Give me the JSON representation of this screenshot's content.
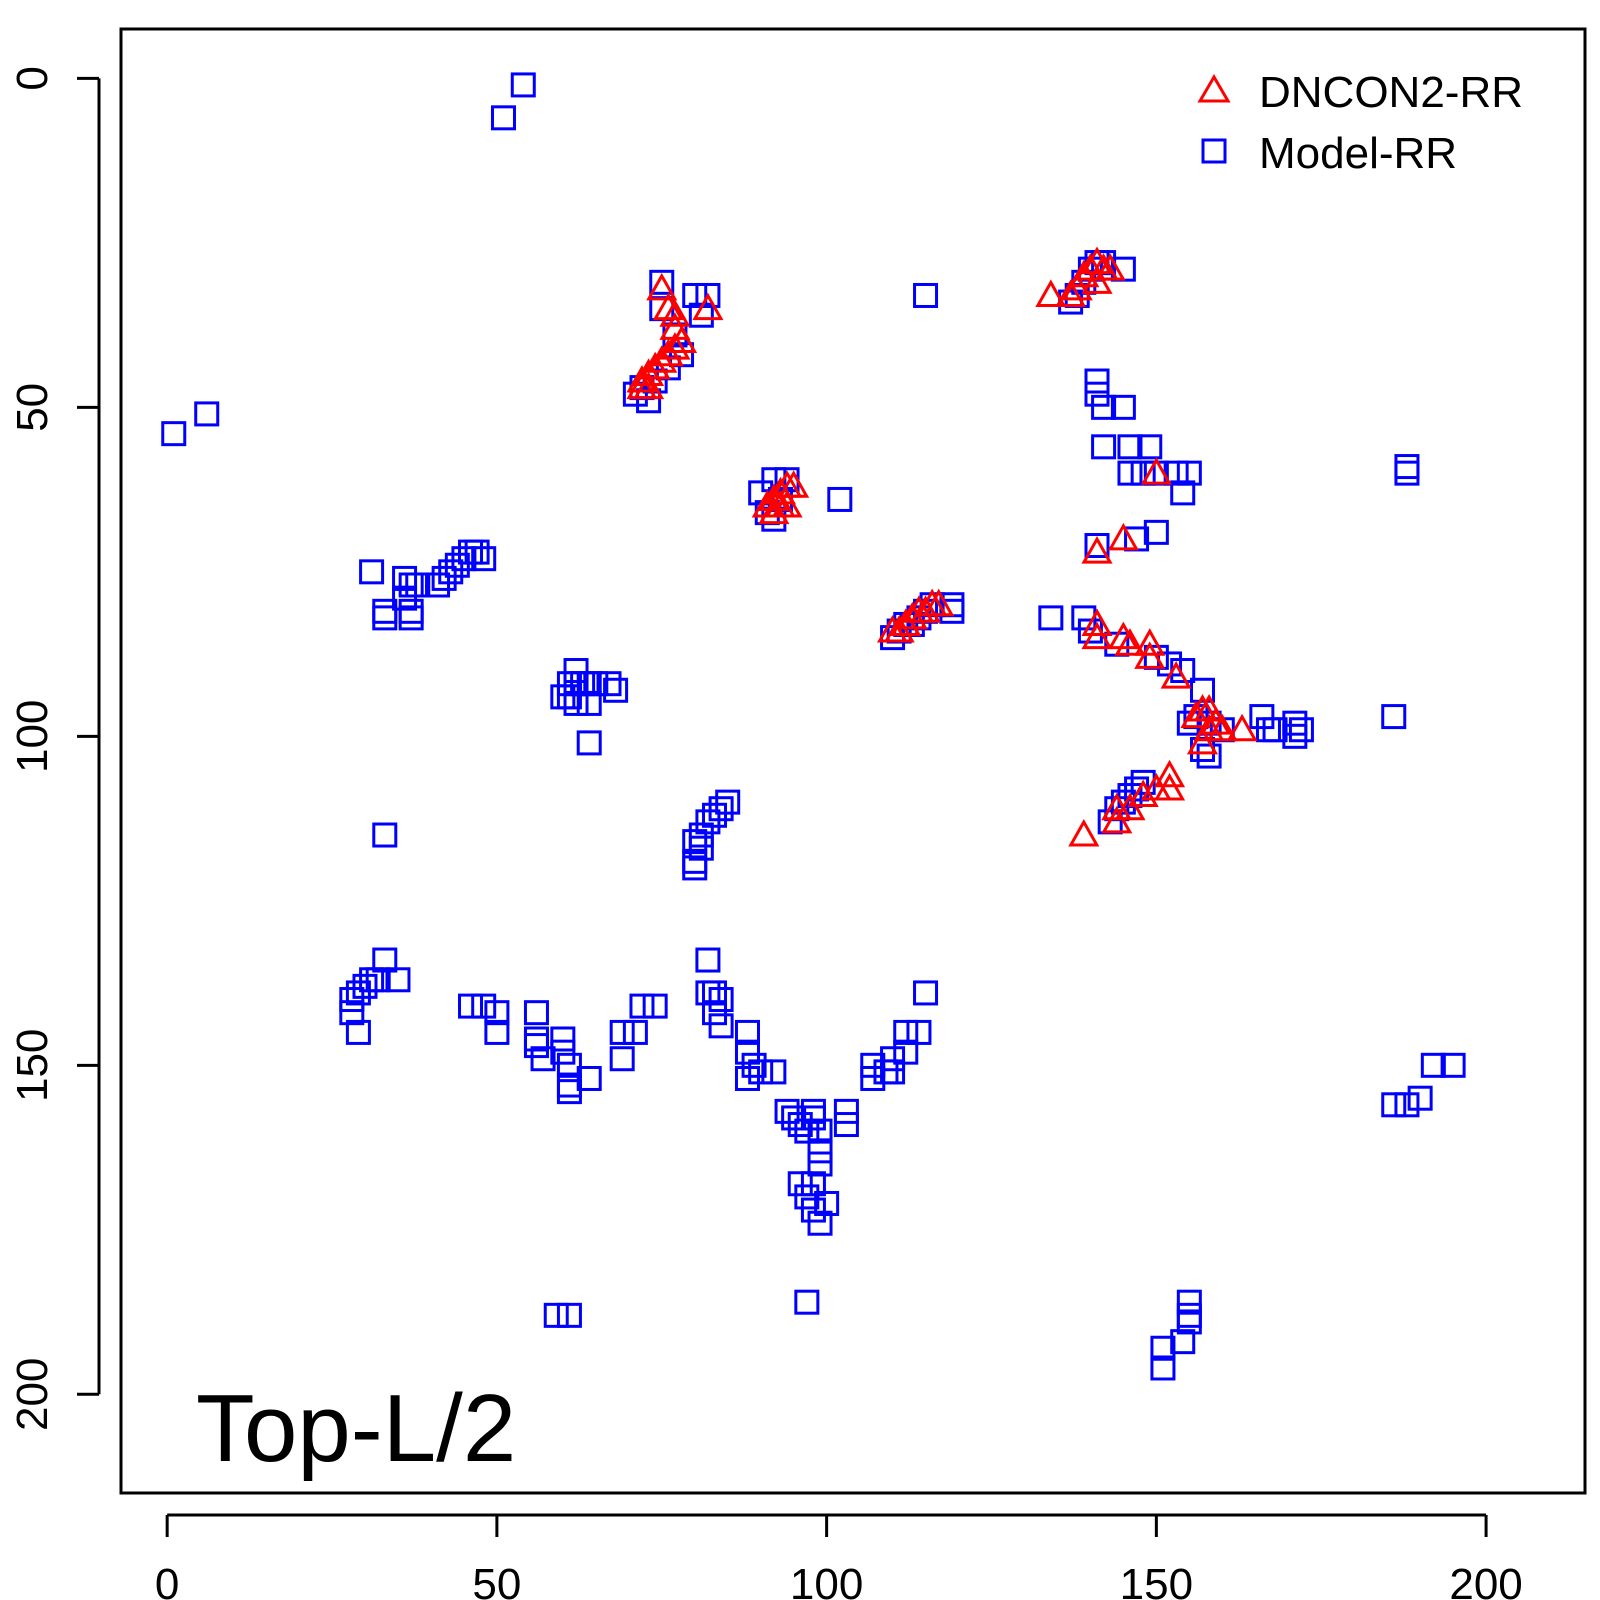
{
  "chart_data": {
    "type": "scatter",
    "title": "",
    "xlabel": "",
    "ylabel": "",
    "xlim": [
      -7,
      215
    ],
    "ylim": [
      -7.5,
      215
    ],
    "y_reversed": true,
    "grid": false,
    "x_ticks": [
      "0",
      "50",
      "100",
      "150",
      "200"
    ],
    "y_ticks": [
      "0",
      "50",
      "100",
      "150",
      "200"
    ],
    "annotation": "Top-L/2",
    "legend": {
      "position": "top-right",
      "entries": [
        "DNCON2-RR",
        "Model-RR"
      ]
    },
    "colors": {
      "DNCON2-RR": "#ff0000",
      "Model-RR": "#0000ff"
    },
    "series": [
      {
        "name": "Model-RR",
        "marker": "square",
        "points": [
          [
            54,
            1
          ],
          [
            51,
            6
          ],
          [
            1,
            54
          ],
          [
            6,
            51
          ],
          [
            75,
            31
          ],
          [
            75,
            35
          ],
          [
            80,
            33
          ],
          [
            82,
            33
          ],
          [
            81,
            36
          ],
          [
            77,
            39
          ],
          [
            78,
            42
          ],
          [
            76,
            44
          ],
          [
            74,
            46
          ],
          [
            72,
            47
          ],
          [
            71,
            48
          ],
          [
            73,
            49
          ],
          [
            92,
            61
          ],
          [
            94,
            61
          ],
          [
            90,
            63
          ],
          [
            93,
            64
          ],
          [
            91,
            66
          ],
          [
            92,
            67
          ],
          [
            102,
            64
          ],
          [
            115,
            33
          ],
          [
            141,
            28
          ],
          [
            142,
            28
          ],
          [
            140,
            29
          ],
          [
            139,
            31
          ],
          [
            138,
            33
          ],
          [
            137,
            34
          ],
          [
            145,
            29
          ],
          [
            141,
            46
          ],
          [
            141,
            48
          ],
          [
            142,
            50
          ],
          [
            145,
            50
          ],
          [
            142,
            56
          ],
          [
            146,
            56
          ],
          [
            146,
            60
          ],
          [
            149,
            56
          ],
          [
            148,
            60
          ],
          [
            150,
            60
          ],
          [
            153,
            60
          ],
          [
            155,
            60
          ],
          [
            154,
            63
          ],
          [
            141,
            71
          ],
          [
            147,
            70
          ],
          [
            150,
            69
          ],
          [
            31,
            75
          ],
          [
            36,
            76
          ],
          [
            37,
            77
          ],
          [
            38,
            77
          ],
          [
            36,
            79
          ],
          [
            33,
            81
          ],
          [
            33,
            82
          ],
          [
            37,
            81
          ],
          [
            37,
            82
          ],
          [
            41,
            77
          ],
          [
            42,
            76
          ],
          [
            43,
            75
          ],
          [
            44,
            74
          ],
          [
            45,
            73
          ],
          [
            46,
            72
          ],
          [
            47,
            72
          ],
          [
            48,
            73
          ],
          [
            110,
            85
          ],
          [
            111,
            84
          ],
          [
            112,
            83
          ],
          [
            113,
            83
          ],
          [
            114,
            82
          ],
          [
            115,
            81
          ],
          [
            116,
            80
          ],
          [
            119,
            80
          ],
          [
            119,
            81
          ],
          [
            134,
            82
          ],
          [
            139,
            82
          ],
          [
            140,
            84
          ],
          [
            144,
            86
          ],
          [
            150,
            88
          ],
          [
            152,
            89
          ],
          [
            154,
            90
          ],
          [
            157,
            93
          ],
          [
            62,
            90
          ],
          [
            61,
            92
          ],
          [
            62,
            92
          ],
          [
            63,
            92
          ],
          [
            64,
            92
          ],
          [
            65,
            92
          ],
          [
            67,
            92
          ],
          [
            68,
            93
          ],
          [
            60,
            94
          ],
          [
            61,
            94
          ],
          [
            62,
            95
          ],
          [
            64,
            95
          ],
          [
            64,
            101
          ],
          [
            155,
            98
          ],
          [
            156,
            97
          ],
          [
            158,
            98
          ],
          [
            160,
            99
          ],
          [
            166,
            97
          ],
          [
            167,
            99
          ],
          [
            168,
            99
          ],
          [
            171,
            98
          ],
          [
            172,
            99
          ],
          [
            171,
            100
          ],
          [
            157,
            102
          ],
          [
            158,
            103
          ],
          [
            186,
            97
          ],
          [
            188,
            59
          ],
          [
            188,
            60
          ],
          [
            85,
            110
          ],
          [
            84,
            111
          ],
          [
            83,
            112
          ],
          [
            82,
            113
          ],
          [
            81,
            115
          ],
          [
            80,
            116
          ],
          [
            81,
            117
          ],
          [
            80,
            119
          ],
          [
            80,
            120
          ],
          [
            33,
            115
          ],
          [
            148,
            107
          ],
          [
            147,
            108
          ],
          [
            146,
            109
          ],
          [
            145,
            110
          ],
          [
            144,
            111
          ],
          [
            143,
            113
          ],
          [
            82,
            134
          ],
          [
            82,
            139
          ],
          [
            83,
            139
          ],
          [
            84,
            140
          ],
          [
            83,
            142
          ],
          [
            84,
            144
          ],
          [
            115,
            139
          ],
          [
            33,
            134
          ],
          [
            32,
            137
          ],
          [
            31,
            137
          ],
          [
            30,
            138
          ],
          [
            29,
            139
          ],
          [
            28,
            140
          ],
          [
            28,
            142
          ],
          [
            29,
            145
          ],
          [
            35,
            137
          ],
          [
            46,
            141
          ],
          [
            48,
            141
          ],
          [
            50,
            142
          ],
          [
            50,
            145
          ],
          [
            56,
            142
          ],
          [
            56,
            146
          ],
          [
            56,
            147
          ],
          [
            57,
            149
          ],
          [
            60,
            146
          ],
          [
            60,
            148
          ],
          [
            61,
            150
          ],
          [
            61,
            153
          ],
          [
            61,
            154
          ],
          [
            64,
            152
          ],
          [
            69,
            145
          ],
          [
            71,
            145
          ],
          [
            72,
            141
          ],
          [
            74,
            141
          ],
          [
            69,
            149
          ],
          [
            88,
            145
          ],
          [
            88,
            148
          ],
          [
            89,
            150
          ],
          [
            88,
            152
          ],
          [
            90,
            151
          ],
          [
            92,
            151
          ],
          [
            94,
            157
          ],
          [
            95,
            158
          ],
          [
            96,
            159
          ],
          [
            97,
            160
          ],
          [
            98,
            158
          ],
          [
            98,
            157
          ],
          [
            99,
            160
          ],
          [
            99,
            163
          ],
          [
            99,
            165
          ],
          [
            98,
            168
          ],
          [
            97,
            170
          ],
          [
            98,
            172
          ],
          [
            99,
            174
          ],
          [
            100,
            171
          ],
          [
            96,
            168
          ],
          [
            103,
            157
          ],
          [
            103,
            159
          ],
          [
            107,
            150
          ],
          [
            107,
            152
          ],
          [
            109,
            151
          ],
          [
            110,
            149
          ],
          [
            110,
            151
          ],
          [
            112,
            145
          ],
          [
            112,
            148
          ],
          [
            114,
            145
          ],
          [
            186,
            156
          ],
          [
            188,
            156
          ],
          [
            190,
            155
          ],
          [
            192,
            150
          ],
          [
            195,
            150
          ],
          [
            59,
            188
          ],
          [
            61,
            188
          ],
          [
            97,
            186
          ],
          [
            155,
            186
          ],
          [
            155,
            188
          ],
          [
            155,
            189
          ],
          [
            154,
            192
          ],
          [
            151,
            193
          ],
          [
            151,
            196
          ]
        ]
      },
      {
        "name": "DNCON2-RR",
        "marker": "triangle",
        "points": [
          [
            75,
            32
          ],
          [
            76,
            35
          ],
          [
            77,
            36
          ],
          [
            77,
            38
          ],
          [
            78,
            40
          ],
          [
            77,
            41
          ],
          [
            76,
            42
          ],
          [
            75,
            43
          ],
          [
            74,
            44
          ],
          [
            73,
            45
          ],
          [
            72,
            46
          ],
          [
            72,
            47
          ],
          [
            73,
            47
          ],
          [
            82,
            35
          ],
          [
            134,
            33
          ],
          [
            137,
            33
          ],
          [
            138,
            32
          ],
          [
            139,
            30
          ],
          [
            140,
            29
          ],
          [
            141,
            28
          ],
          [
            142,
            29
          ],
          [
            143,
            29
          ],
          [
            141,
            31
          ],
          [
            91,
            65
          ],
          [
            92,
            64
          ],
          [
            93,
            63
          ],
          [
            94,
            62
          ],
          [
            95,
            62
          ],
          [
            93,
            65
          ],
          [
            92,
            66
          ],
          [
            94,
            65
          ],
          [
            110,
            84
          ],
          [
            111,
            84
          ],
          [
            112,
            83
          ],
          [
            113,
            82
          ],
          [
            114,
            81
          ],
          [
            115,
            81
          ],
          [
            116,
            80
          ],
          [
            117,
            80
          ],
          [
            150,
            60
          ],
          [
            141,
            72
          ],
          [
            145,
            70
          ],
          [
            141,
            83
          ],
          [
            141,
            85
          ],
          [
            145,
            85
          ],
          [
            146,
            86
          ],
          [
            149,
            86
          ],
          [
            149,
            88
          ],
          [
            153,
            91
          ],
          [
            156,
            97
          ],
          [
            157,
            96
          ],
          [
            158,
            96
          ],
          [
            159,
            98
          ],
          [
            158,
            99
          ],
          [
            160,
            99
          ],
          [
            157,
            101
          ],
          [
            163,
            99
          ],
          [
            152,
            106
          ],
          [
            152,
            108
          ],
          [
            150,
            108
          ],
          [
            148,
            109
          ],
          [
            146,
            111
          ],
          [
            144,
            111
          ],
          [
            144,
            113
          ],
          [
            139,
            115
          ]
        ]
      }
    ]
  }
}
